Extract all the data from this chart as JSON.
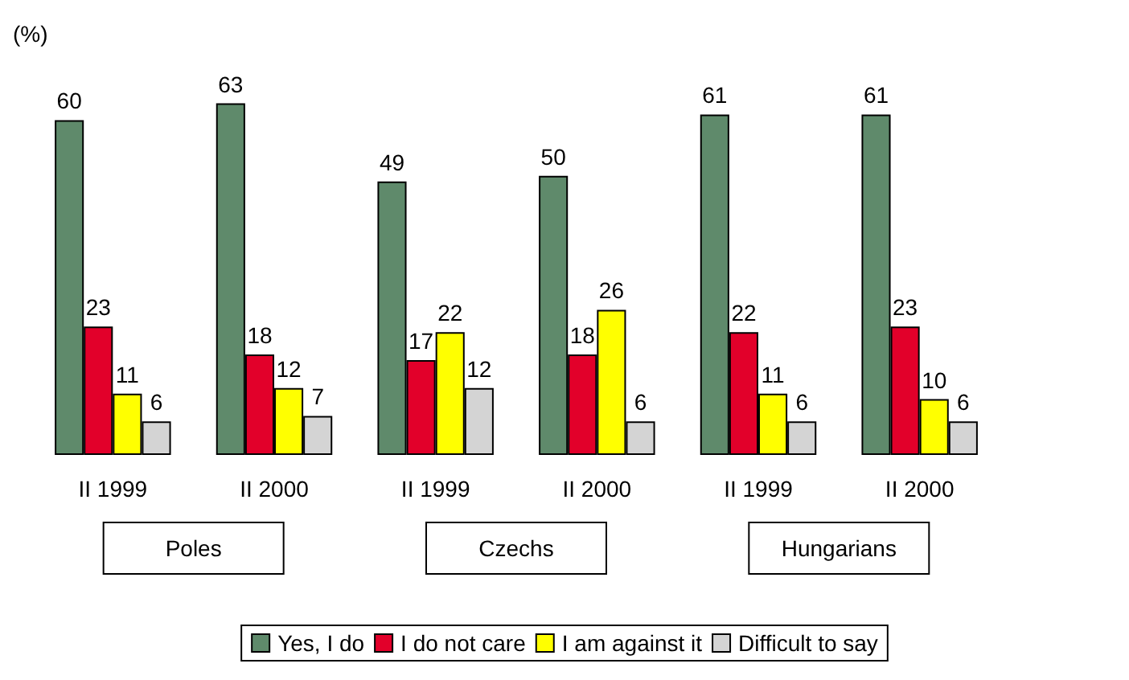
{
  "chart_data": {
    "type": "bar",
    "ylabel": "(%)",
    "categories": [
      "II 1999",
      "II 2000",
      "II 1999",
      "II 2000",
      "II 1999",
      "II 2000"
    ],
    "series": [
      {
        "name": "Yes, I do",
        "color": "#5f8a6b",
        "values": [
          60,
          63,
          49,
          50,
          61,
          61
        ]
      },
      {
        "name": "I do not care",
        "color": "#e2002a",
        "values": [
          23,
          18,
          17,
          18,
          22,
          23
        ]
      },
      {
        "name": "I am against it",
        "color": "#ffff00",
        "values": [
          11,
          12,
          22,
          26,
          11,
          10
        ]
      },
      {
        "name": "Difficult to say",
        "color": "#d4d4d4",
        "values": [
          6,
          7,
          12,
          6,
          6,
          6
        ]
      }
    ],
    "annotations": [
      "Poles",
      "Czechs",
      "Hungarians"
    ],
    "data_labels": true,
    "grid": false,
    "legend": "bottom",
    "tick_labels": "x"
  }
}
